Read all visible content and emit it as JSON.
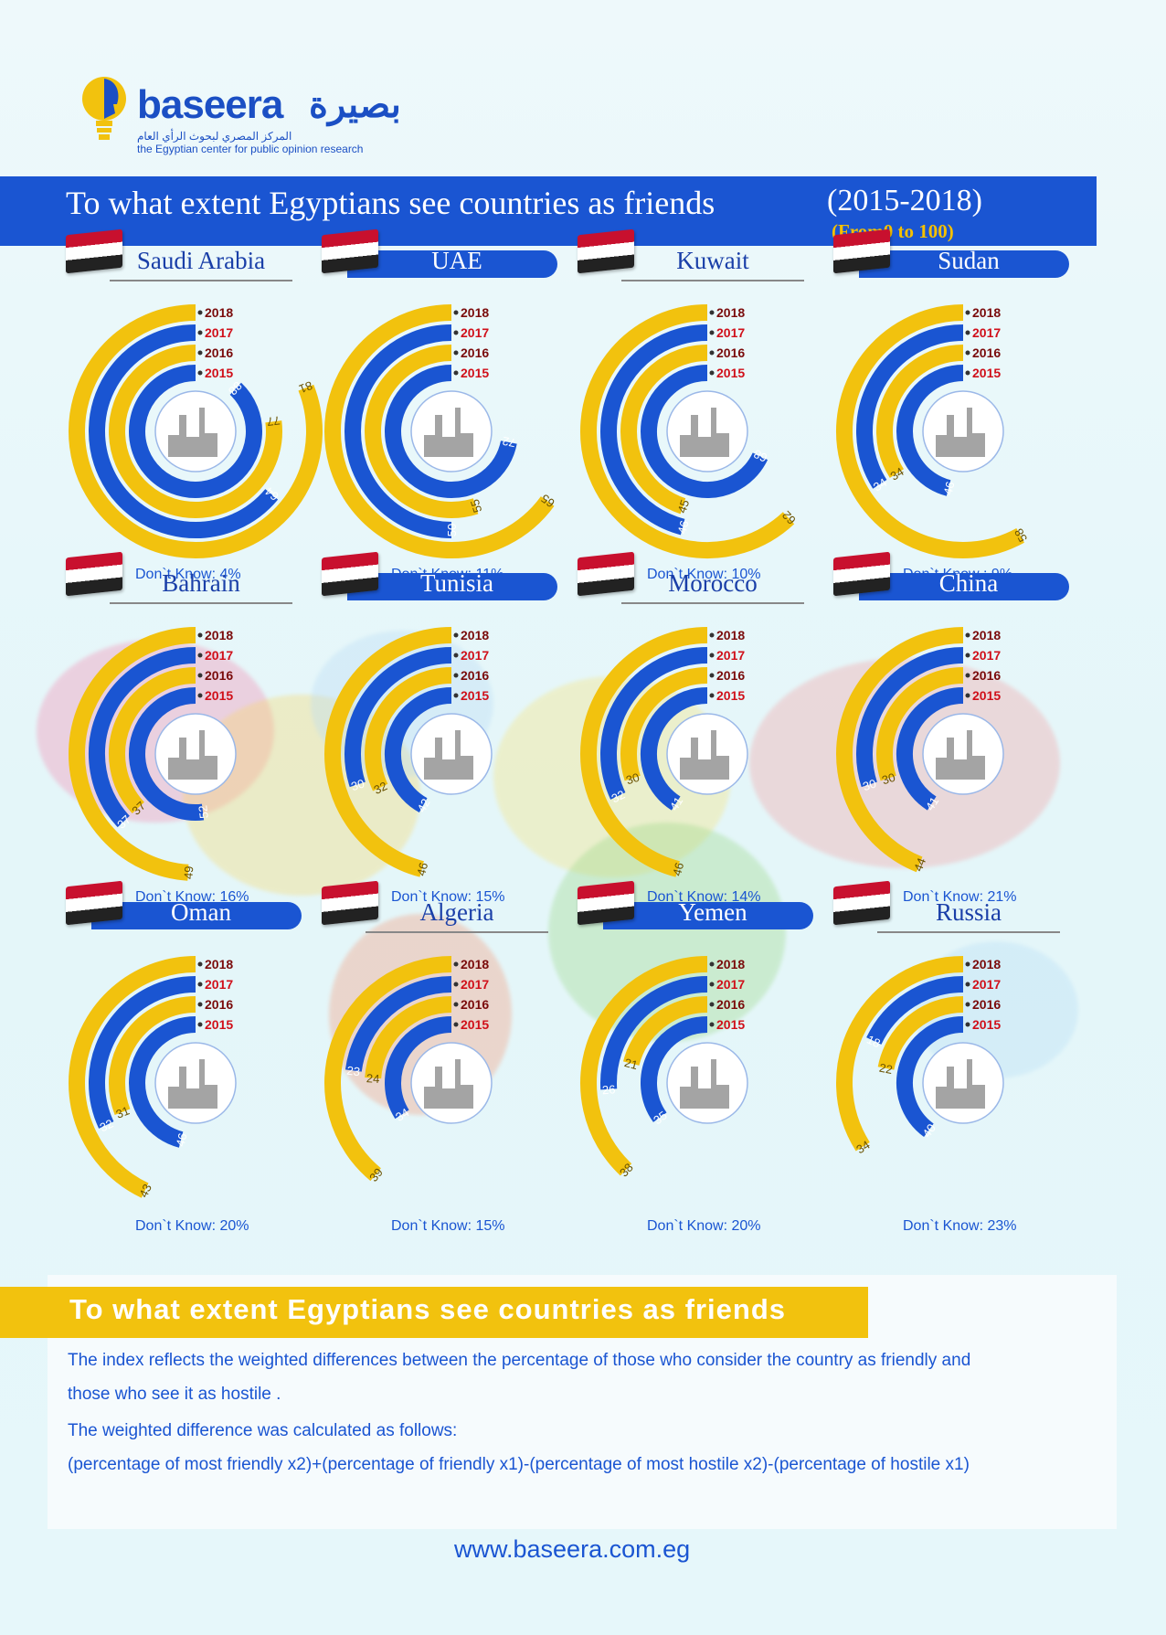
{
  "logo": {
    "wordmark": "baseera",
    "arabic": "بصيرة",
    "tagline_ar": "المركز المصري لبحوث الرأي العام",
    "tagline_en": "the Egyptian center for public opinion research"
  },
  "header": {
    "title": "To what extent Egyptians see countries as friends",
    "years": "(2015-2018)",
    "range": "(From0 to 100)"
  },
  "colors": {
    "blue": "#1a55d2",
    "yellow": "#f2c20e",
    "dark_red": "#7a0b0b",
    "red": "#d0101a"
  },
  "chart_data": [
    {
      "type": "radial-bar",
      "title": "Saudi Arabia",
      "years": [
        "2018",
        "2017",
        "2016",
        "2015"
      ],
      "values": [
        81,
        64,
        77,
        88
      ],
      "dont_know": "Don`t Know: 4%"
    },
    {
      "type": "radial-bar",
      "title": "UAE",
      "years": [
        "2018",
        "2017",
        "2016",
        "2015"
      ],
      "values": [
        65,
        50,
        55,
        72
      ],
      "dont_know": "Don`t Know: 11%"
    },
    {
      "type": "radial-bar",
      "title": "Kuwait",
      "years": [
        "2018",
        "2017",
        "2016",
        "2015"
      ],
      "values": [
        62,
        46,
        45,
        68
      ],
      "dont_know": "Don`t Know: 10%"
    },
    {
      "type": "radial-bar",
      "title": "Sudan",
      "years": [
        "2018",
        "2017",
        "2016",
        "2015"
      ],
      "values": [
        58,
        34,
        34,
        46
      ],
      "dont_know": "Don`t Know : 9%"
    },
    {
      "type": "radial-bar",
      "title": "Bahrain",
      "years": [
        "2018",
        "2017",
        "2016",
        "2015"
      ],
      "values": [
        49,
        37,
        37,
        52
      ],
      "dont_know": "Don`t Know: 16%"
    },
    {
      "type": "radial-bar",
      "title": "Tunisia",
      "years": [
        "2018",
        "2017",
        "2016",
        "2015"
      ],
      "values": [
        46,
        30,
        32,
        42
      ],
      "dont_know": "Don`t Know: 15%"
    },
    {
      "type": "radial-bar",
      "title": "Morocco",
      "years": [
        "2018",
        "2017",
        "2016",
        "2015"
      ],
      "values": [
        46,
        32,
        30,
        41
      ],
      "dont_know": "Don`t Know: 14%"
    },
    {
      "type": "radial-bar",
      "title": "China",
      "years": [
        "2018",
        "2017",
        "2016",
        "2015"
      ],
      "values": [
        44,
        30,
        30,
        41
      ],
      "dont_know": "Don`t Know: 21%"
    },
    {
      "type": "radial-bar",
      "title": "Oman",
      "years": [
        "2018",
        "2017",
        "2016",
        "2015"
      ],
      "values": [
        43,
        32,
        31,
        46
      ],
      "dont_know": "Don`t Know: 20%"
    },
    {
      "type": "radial-bar",
      "title": "Algeria",
      "years": [
        "2018",
        "2017",
        "2016",
        "2015"
      ],
      "values": [
        39,
        23,
        24,
        34
      ],
      "dont_know": "Don`t Know: 15%"
    },
    {
      "type": "radial-bar",
      "title": "Yemen",
      "years": [
        "2018",
        "2017",
        "2016",
        "2015"
      ],
      "values": [
        38,
        26,
        21,
        35
      ],
      "dont_know": "Don`t Know: 20%"
    },
    {
      "type": "radial-bar",
      "title": "Russia",
      "years": [
        "2018",
        "2017",
        "2016",
        "2015"
      ],
      "values": [
        34,
        18,
        22,
        40
      ],
      "dont_know": "Don`t Know: 23%"
    }
  ],
  "footer_section": {
    "title": "To what extent Egyptians see countries as friends",
    "line1": "The index reflects the weighted differences between the percentage of those who consider the country as friendly and",
    "line2": "those who see it as hostile .",
    "line3": "The weighted difference was calculated as follows:",
    "line4": "(percentage of most friendly x2)+(percentage of friendly x1)-(percentage of most hostile x2)-(percentage of hostile x1)"
  },
  "website": "www.baseera.com.eg"
}
